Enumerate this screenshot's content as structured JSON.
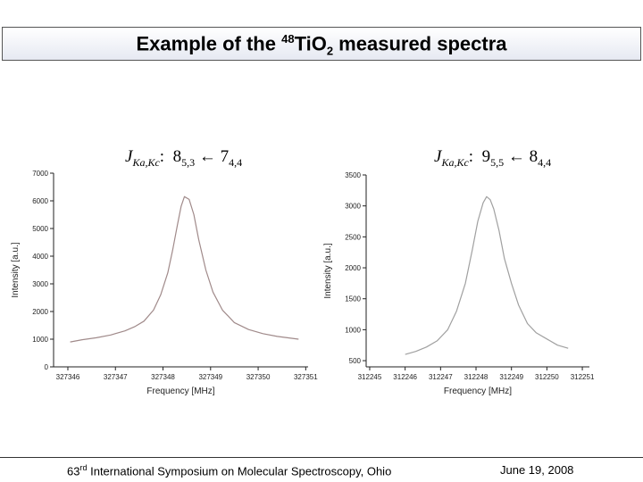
{
  "title": {
    "pre": "Example of the ",
    "iso": "48",
    "mid": "TiO",
    "sub": "2",
    "post": " measured spectra"
  },
  "transition_left": {
    "j": "J",
    "jsub": "Ka,Kc",
    "colon": ":",
    "upper": "8",
    "upper_sub": "5,3",
    "arrow": "←",
    "lower": "7",
    "lower_sub": "4,4"
  },
  "transition_right": {
    "j": "J",
    "jsub": "Ka,Kc",
    "colon": ":",
    "upper": "9",
    "upper_sub": "5,5",
    "arrow": "←",
    "lower": "8",
    "lower_sub": "4,4"
  },
  "footer": {
    "left_pre": "63",
    "left_sup": "rd",
    "left_post": " International Symposium on Molecular Spectroscopy, Ohio",
    "right": "June 19, 2008"
  },
  "chart_data": [
    {
      "type": "line",
      "xlabel": "Frequency [MHz]",
      "ylabel": "Intensity [a.u.]",
      "xlim": [
        327345.7,
        327351.05
      ],
      "ylim": [
        0,
        7000
      ],
      "x_ticks": [
        327346,
        327347,
        327348,
        327349,
        327350,
        327351
      ],
      "y_ticks": [
        0,
        1000,
        2000,
        3000,
        4000,
        5000,
        6000,
        7000
      ],
      "x_tick_labels": [
        "327346",
        "327347",
        "327348",
        "327349",
        "327350",
        "327351"
      ],
      "y_tick_labels": [
        "0",
        "1000",
        "2000",
        "3000",
        "4000",
        "5000",
        "6000",
        "7000"
      ],
      "series": [
        {
          "color": "#a08a8a",
          "x": [
            327346.05,
            327346.3,
            327346.6,
            327346.9,
            327347.2,
            327347.4,
            327347.6,
            327347.8,
            327347.95,
            327348.1,
            327348.2,
            327348.3,
            327348.38,
            327348.45,
            327348.55,
            327348.65,
            327348.75,
            327348.9,
            327349.05,
            327349.25,
            327349.5,
            327349.8,
            327350.1,
            327350.4,
            327350.85
          ],
          "y": [
            900,
            980,
            1050,
            1150,
            1300,
            1450,
            1650,
            2050,
            2600,
            3400,
            4200,
            5100,
            5800,
            6150,
            6050,
            5500,
            4600,
            3500,
            2700,
            2050,
            1600,
            1350,
            1200,
            1100,
            1000
          ]
        }
      ]
    },
    {
      "type": "line",
      "xlabel": "Frequency [MHz]",
      "ylabel": "Intensity [a.u.]",
      "xlim": [
        312244.9,
        312251.2
      ],
      "ylim": [
        400,
        3500
      ],
      "x_ticks": [
        312245,
        312246,
        312247,
        312248,
        312249,
        312250,
        312251
      ],
      "y_ticks": [
        500,
        1000,
        1500,
        2000,
        2500,
        3000,
        3500
      ],
      "x_tick_labels": [
        "312245",
        "312246",
        "312247",
        "312248",
        "312249",
        "312250",
        "312251"
      ],
      "y_tick_labels": [
        "500",
        "1000",
        "1500",
        "2000",
        "2500",
        "3000",
        "3500"
      ],
      "series": [
        {
          "color": "#a0a0a0",
          "x": [
            312246.0,
            312246.3,
            312246.6,
            312246.9,
            312247.2,
            312247.45,
            312247.7,
            312247.9,
            312248.05,
            312248.2,
            312248.3,
            312248.4,
            312248.5,
            312248.65,
            312248.8,
            312249.0,
            312249.2,
            312249.45,
            312249.7,
            312250.0,
            312250.3,
            312250.6
          ],
          "y": [
            600,
            650,
            720,
            820,
            1000,
            1300,
            1750,
            2300,
            2750,
            3050,
            3150,
            3100,
            2950,
            2600,
            2150,
            1750,
            1400,
            1100,
            950,
            850,
            750,
            700
          ]
        }
      ]
    }
  ]
}
